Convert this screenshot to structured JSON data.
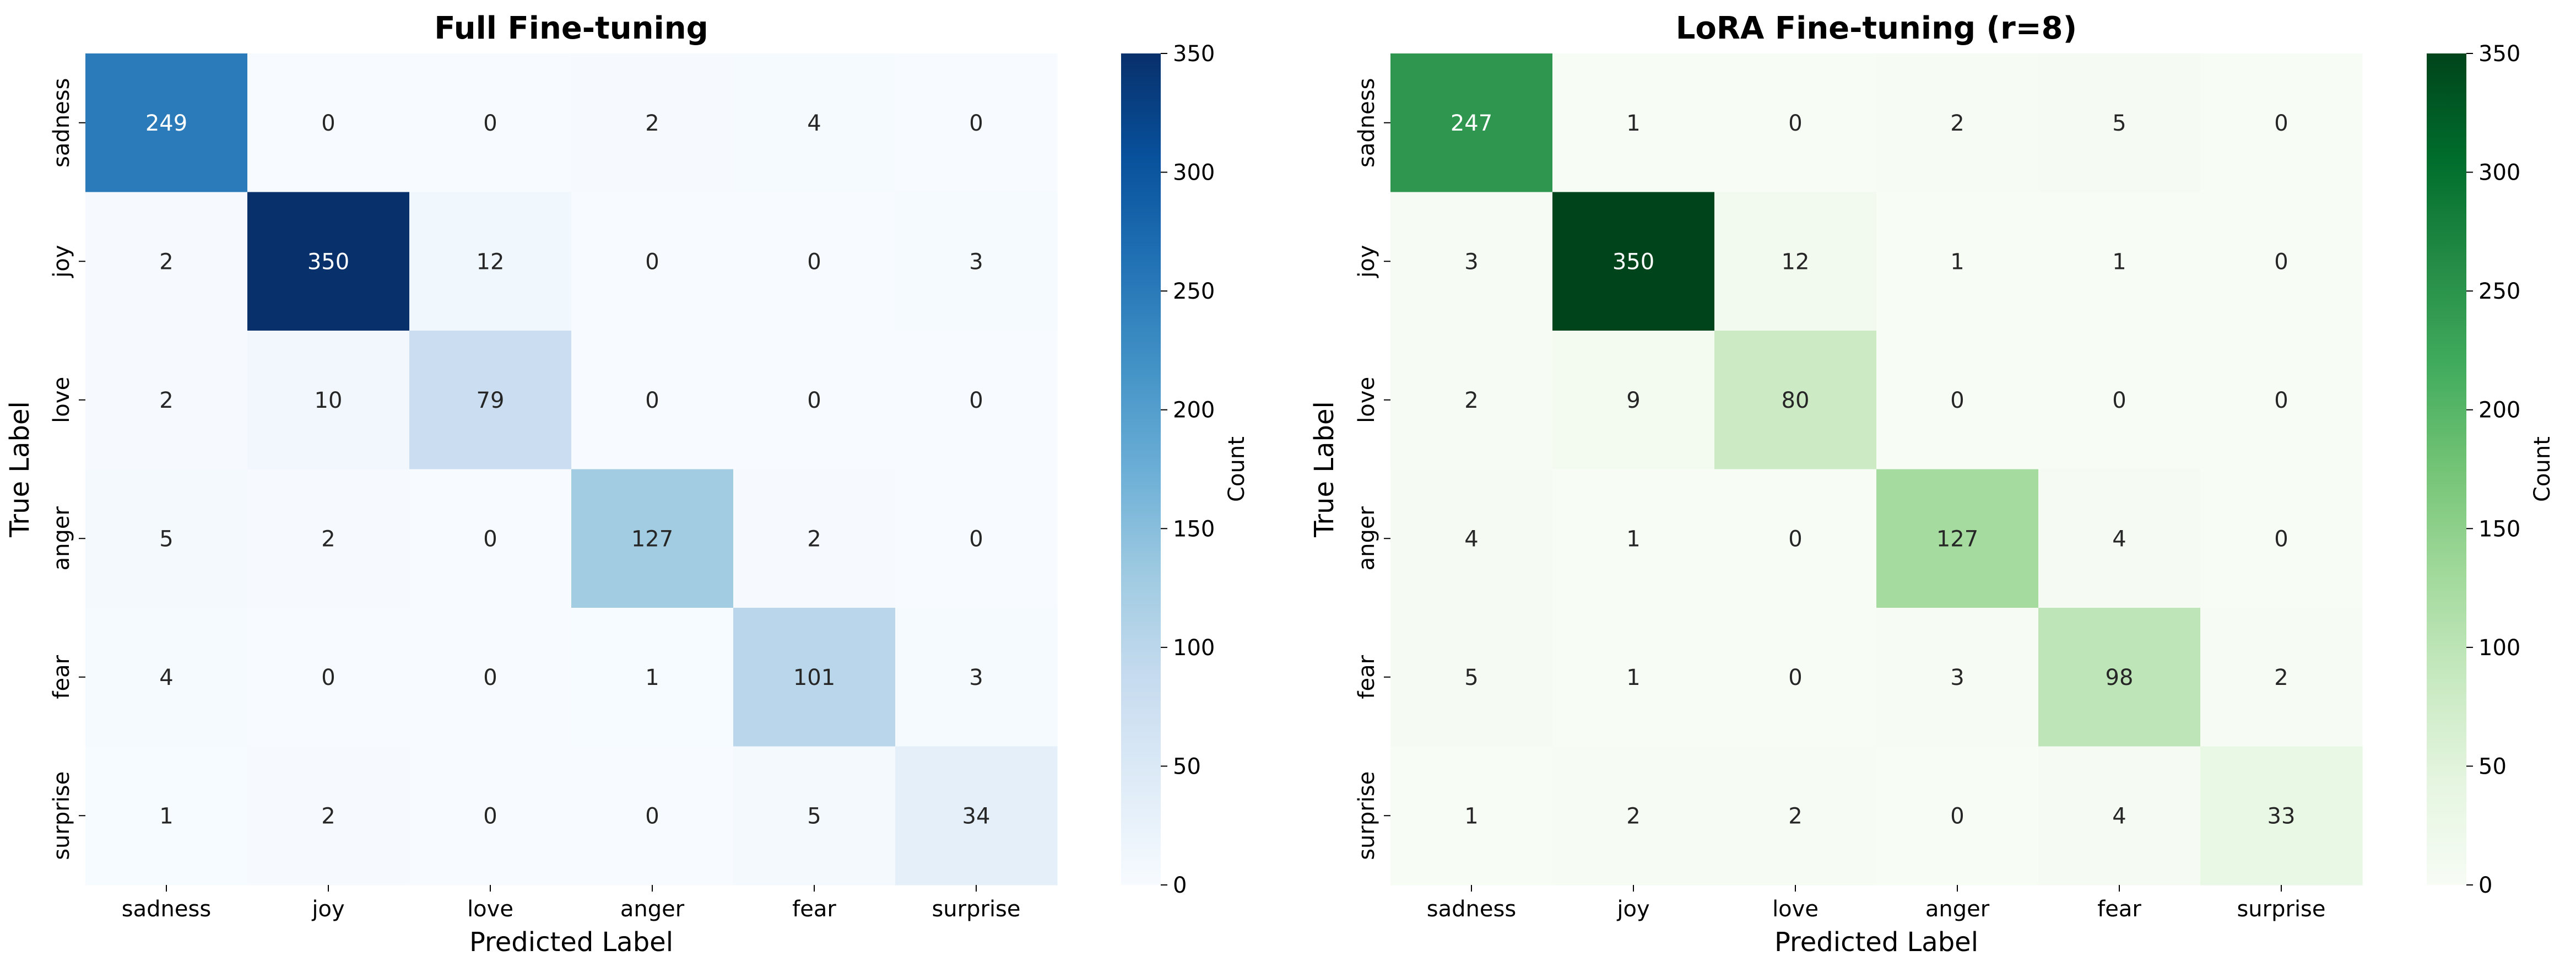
{
  "chart_data": [
    {
      "type": "heatmap",
      "title": "Full Fine-tuning",
      "xlabel": "Predicted Label",
      "ylabel": "True Label",
      "x_categories": [
        "sadness",
        "joy",
        "love",
        "anger",
        "fear",
        "surprise"
      ],
      "y_categories": [
        "sadness",
        "joy",
        "love",
        "anger",
        "fear",
        "surprise"
      ],
      "values": [
        [
          249,
          0,
          0,
          2,
          4,
          0
        ],
        [
          2,
          350,
          12,
          0,
          0,
          3
        ],
        [
          2,
          10,
          79,
          0,
          0,
          0
        ],
        [
          5,
          2,
          0,
          127,
          2,
          0
        ],
        [
          4,
          0,
          0,
          1,
          101,
          3
        ],
        [
          1,
          2,
          0,
          0,
          5,
          34
        ]
      ],
      "colormap": "Blues",
      "color_stops": [
        "#f7fbff",
        "#deebf7",
        "#c6dbef",
        "#9ecae1",
        "#6baed6",
        "#4292c6",
        "#2171b5",
        "#08519c",
        "#08306b"
      ],
      "colorbar": {
        "label": "Count",
        "range": [
          0,
          350
        ],
        "ticks": [
          0,
          50,
          100,
          150,
          200,
          250,
          300,
          350
        ]
      }
    },
    {
      "type": "heatmap",
      "title": "LoRA Fine-tuning (r=8)",
      "xlabel": "Predicted Label",
      "ylabel": "True Label",
      "x_categories": [
        "sadness",
        "joy",
        "love",
        "anger",
        "fear",
        "surprise"
      ],
      "y_categories": [
        "sadness",
        "joy",
        "love",
        "anger",
        "fear",
        "surprise"
      ],
      "values": [
        [
          247,
          1,
          0,
          2,
          5,
          0
        ],
        [
          3,
          350,
          12,
          1,
          1,
          0
        ],
        [
          2,
          9,
          80,
          0,
          0,
          0
        ],
        [
          4,
          1,
          0,
          127,
          4,
          0
        ],
        [
          5,
          1,
          0,
          3,
          98,
          2
        ],
        [
          1,
          2,
          2,
          0,
          4,
          33
        ]
      ],
      "colormap": "Greens",
      "color_stops": [
        "#f7fcf5",
        "#e5f5e0",
        "#c7e9c0",
        "#a1d99b",
        "#74c476",
        "#41ab5d",
        "#238b45",
        "#006d2c",
        "#00441b"
      ],
      "colorbar": {
        "label": "Count",
        "range": [
          0,
          350
        ],
        "ticks": [
          0,
          50,
          100,
          150,
          200,
          250,
          300,
          350
        ]
      }
    }
  ]
}
